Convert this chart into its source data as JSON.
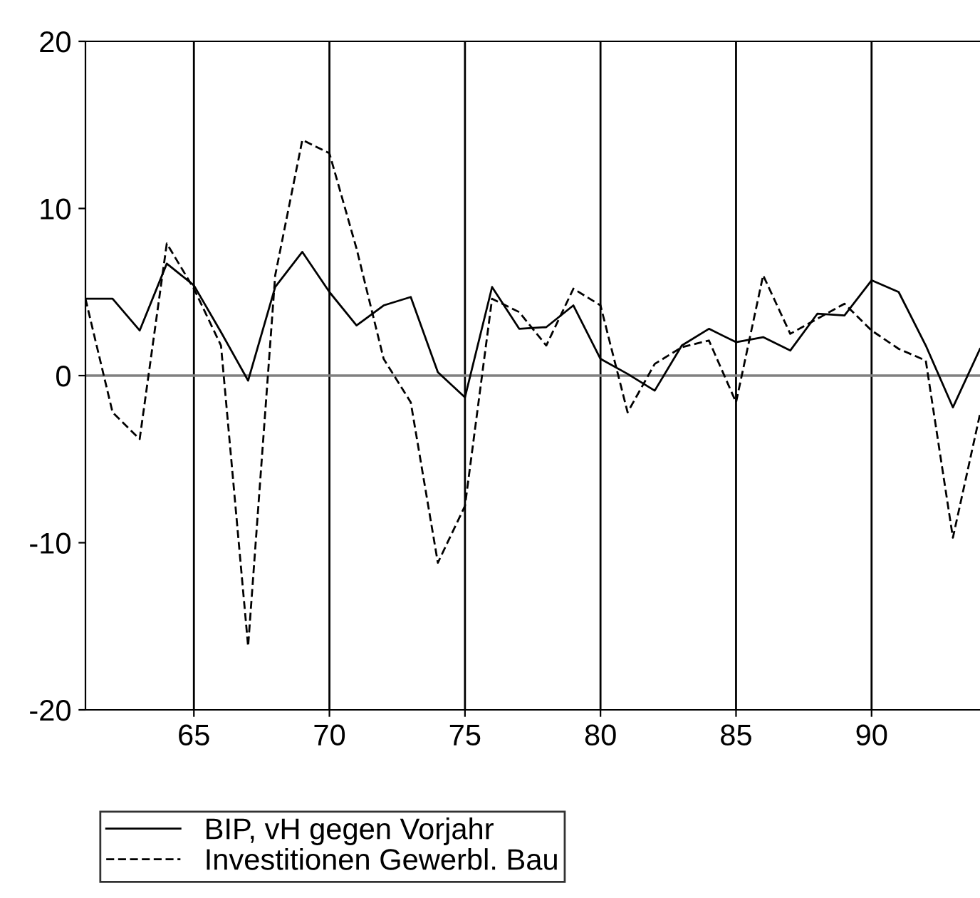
{
  "chart_data": {
    "type": "line",
    "x": [
      61,
      62,
      63,
      64,
      65,
      66,
      67,
      68,
      69,
      70,
      71,
      72,
      73,
      74,
      75,
      76,
      77,
      78,
      79,
      80,
      81,
      82,
      83,
      84,
      85,
      86,
      87,
      88,
      89,
      90,
      91,
      92,
      93,
      94
    ],
    "series": [
      {
        "name": "BIP, vH gegen Vorjahr",
        "color": "#000000",
        "line_style": "solid",
        "values": [
          4.6,
          4.6,
          2.7,
          6.7,
          5.4,
          2.6,
          -0.3,
          5.3,
          7.4,
          5.0,
          3.0,
          4.2,
          4.7,
          0.2,
          -1.3,
          5.3,
          2.8,
          2.9,
          4.2,
          1.0,
          0.1,
          -0.9,
          1.8,
          2.8,
          2.0,
          2.3,
          1.5,
          3.7,
          3.6,
          5.7,
          5.0,
          1.8,
          -1.9,
          1.6
        ]
      },
      {
        "name": "Investitionen Gewerbl. Bau",
        "color": "#000000",
        "line_style": "dashed",
        "values": [
          4.6,
          -2.2,
          -3.8,
          7.9,
          5.2,
          1.8,
          -16.2,
          6.0,
          14.1,
          13.3,
          7.6,
          1.0,
          -1.6,
          -11.2,
          -7.8,
          4.6,
          3.8,
          1.8,
          5.2,
          4.2,
          -2.2,
          0.7,
          1.7,
          2.1,
          -1.6,
          6.0,
          2.5,
          3.4,
          4.3,
          2.7,
          1.6,
          0.9,
          -9.7,
          -2.3
        ]
      }
    ],
    "xlim": [
      61,
      94
    ],
    "xticks": [
      65,
      70,
      75,
      80,
      85,
      90
    ],
    "ylim": [
      -20,
      20
    ],
    "yticks": [
      -20,
      -10,
      0,
      10,
      20
    ],
    "grid": "x",
    "ref_lines": [
      {
        "axis": "y",
        "value": 0,
        "color": "#808080"
      }
    ],
    "legend": "bottom left"
  }
}
